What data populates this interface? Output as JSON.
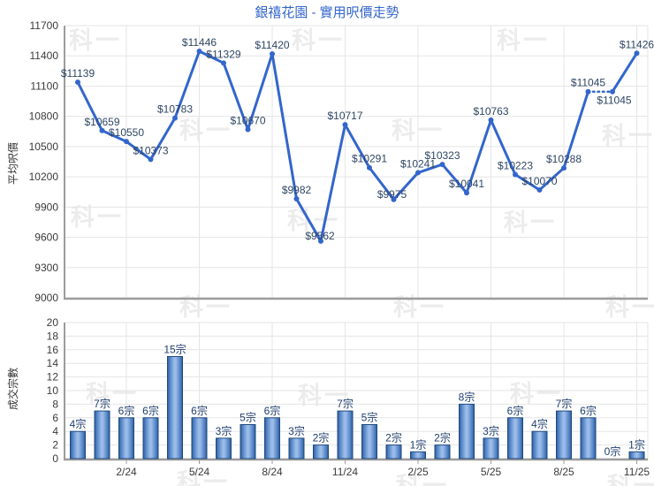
{
  "watermark": {
    "text": "科一"
  },
  "colors": {
    "title": "#3366cc",
    "line": "#3366cc",
    "grid": "#e5e5e5",
    "axis": "#9c9c9c",
    "tick_text": "#3a3a3a",
    "point_label": "#2e4663",
    "bar_label": "#1f3e6d",
    "bar_border": "#1f4a7d",
    "bar_edge": "#2d5996",
    "bar_shade": "#4a7cc0",
    "bar_mid": "#9bbce9"
  },
  "chart_data": [
    {
      "type": "line",
      "title": "銀禧花園 - 實用呎價走勢",
      "ylabel": "平均呎價",
      "ylim": [
        9000,
        11700
      ],
      "yticks": [
        11700,
        11400,
        11100,
        10800,
        10500,
        10200,
        9900,
        9600,
        9300,
        9000
      ],
      "grid": true,
      "xticks": {
        "positions": [
          3,
          6,
          9,
          12,
          15,
          18,
          21,
          24
        ],
        "labels": [
          "2/24",
          "5/24",
          "8/24",
          "11/24",
          "2/25",
          "5/25",
          "8/25",
          "11/25"
        ]
      },
      "values": [
        11139,
        10659,
        10550,
        10373,
        10783,
        11446,
        11329,
        10670,
        11420,
        9982,
        9562,
        10717,
        10291,
        9975,
        10241,
        10323,
        10041,
        10763,
        10223,
        10070,
        10288,
        11045,
        11045,
        11426
      ],
      "point_labels": [
        "$11139",
        "$10659",
        "$10550",
        "$10373",
        "$10783",
        "$11446",
        "$11329",
        "$10670",
        "$11420",
        "$9982",
        "$9562",
        "$10717",
        "$10291",
        "$9975",
        "$10241",
        "$10323",
        "$10041",
        "$10763",
        "$10223",
        "$10070",
        "$10288",
        "$11045",
        "$11045",
        "$11426"
      ],
      "dotted_segment_points": [
        22,
        23
      ]
    },
    {
      "type": "bar",
      "ylabel": "成交宗數",
      "ylim": [
        0,
        20
      ],
      "yticks": [
        20,
        18,
        16,
        14,
        12,
        10,
        8,
        6,
        4,
        2,
        0
      ],
      "grid": true,
      "xticks": {
        "positions": [
          3,
          6,
          9,
          12,
          15,
          18,
          21,
          24
        ],
        "labels": [
          "2/24",
          "5/24",
          "8/24",
          "11/24",
          "2/25",
          "5/25",
          "8/25",
          "11/25"
        ]
      },
      "values": [
        4,
        7,
        6,
        6,
        15,
        6,
        3,
        5,
        6,
        3,
        2,
        7,
        5,
        2,
        1,
        2,
        8,
        3,
        6,
        4,
        7,
        6,
        0,
        1
      ],
      "bar_labels": [
        "4宗",
        "7宗",
        "6宗",
        "6宗",
        "15宗",
        "6宗",
        "3宗",
        "5宗",
        "6宗",
        "3宗",
        "2宗",
        "7宗",
        "5宗",
        "2宗",
        "1宗",
        "2宗",
        "8宗",
        "3宗",
        "6宗",
        "4宗",
        "7宗",
        "6宗",
        "0宗",
        "1宗"
      ]
    }
  ]
}
